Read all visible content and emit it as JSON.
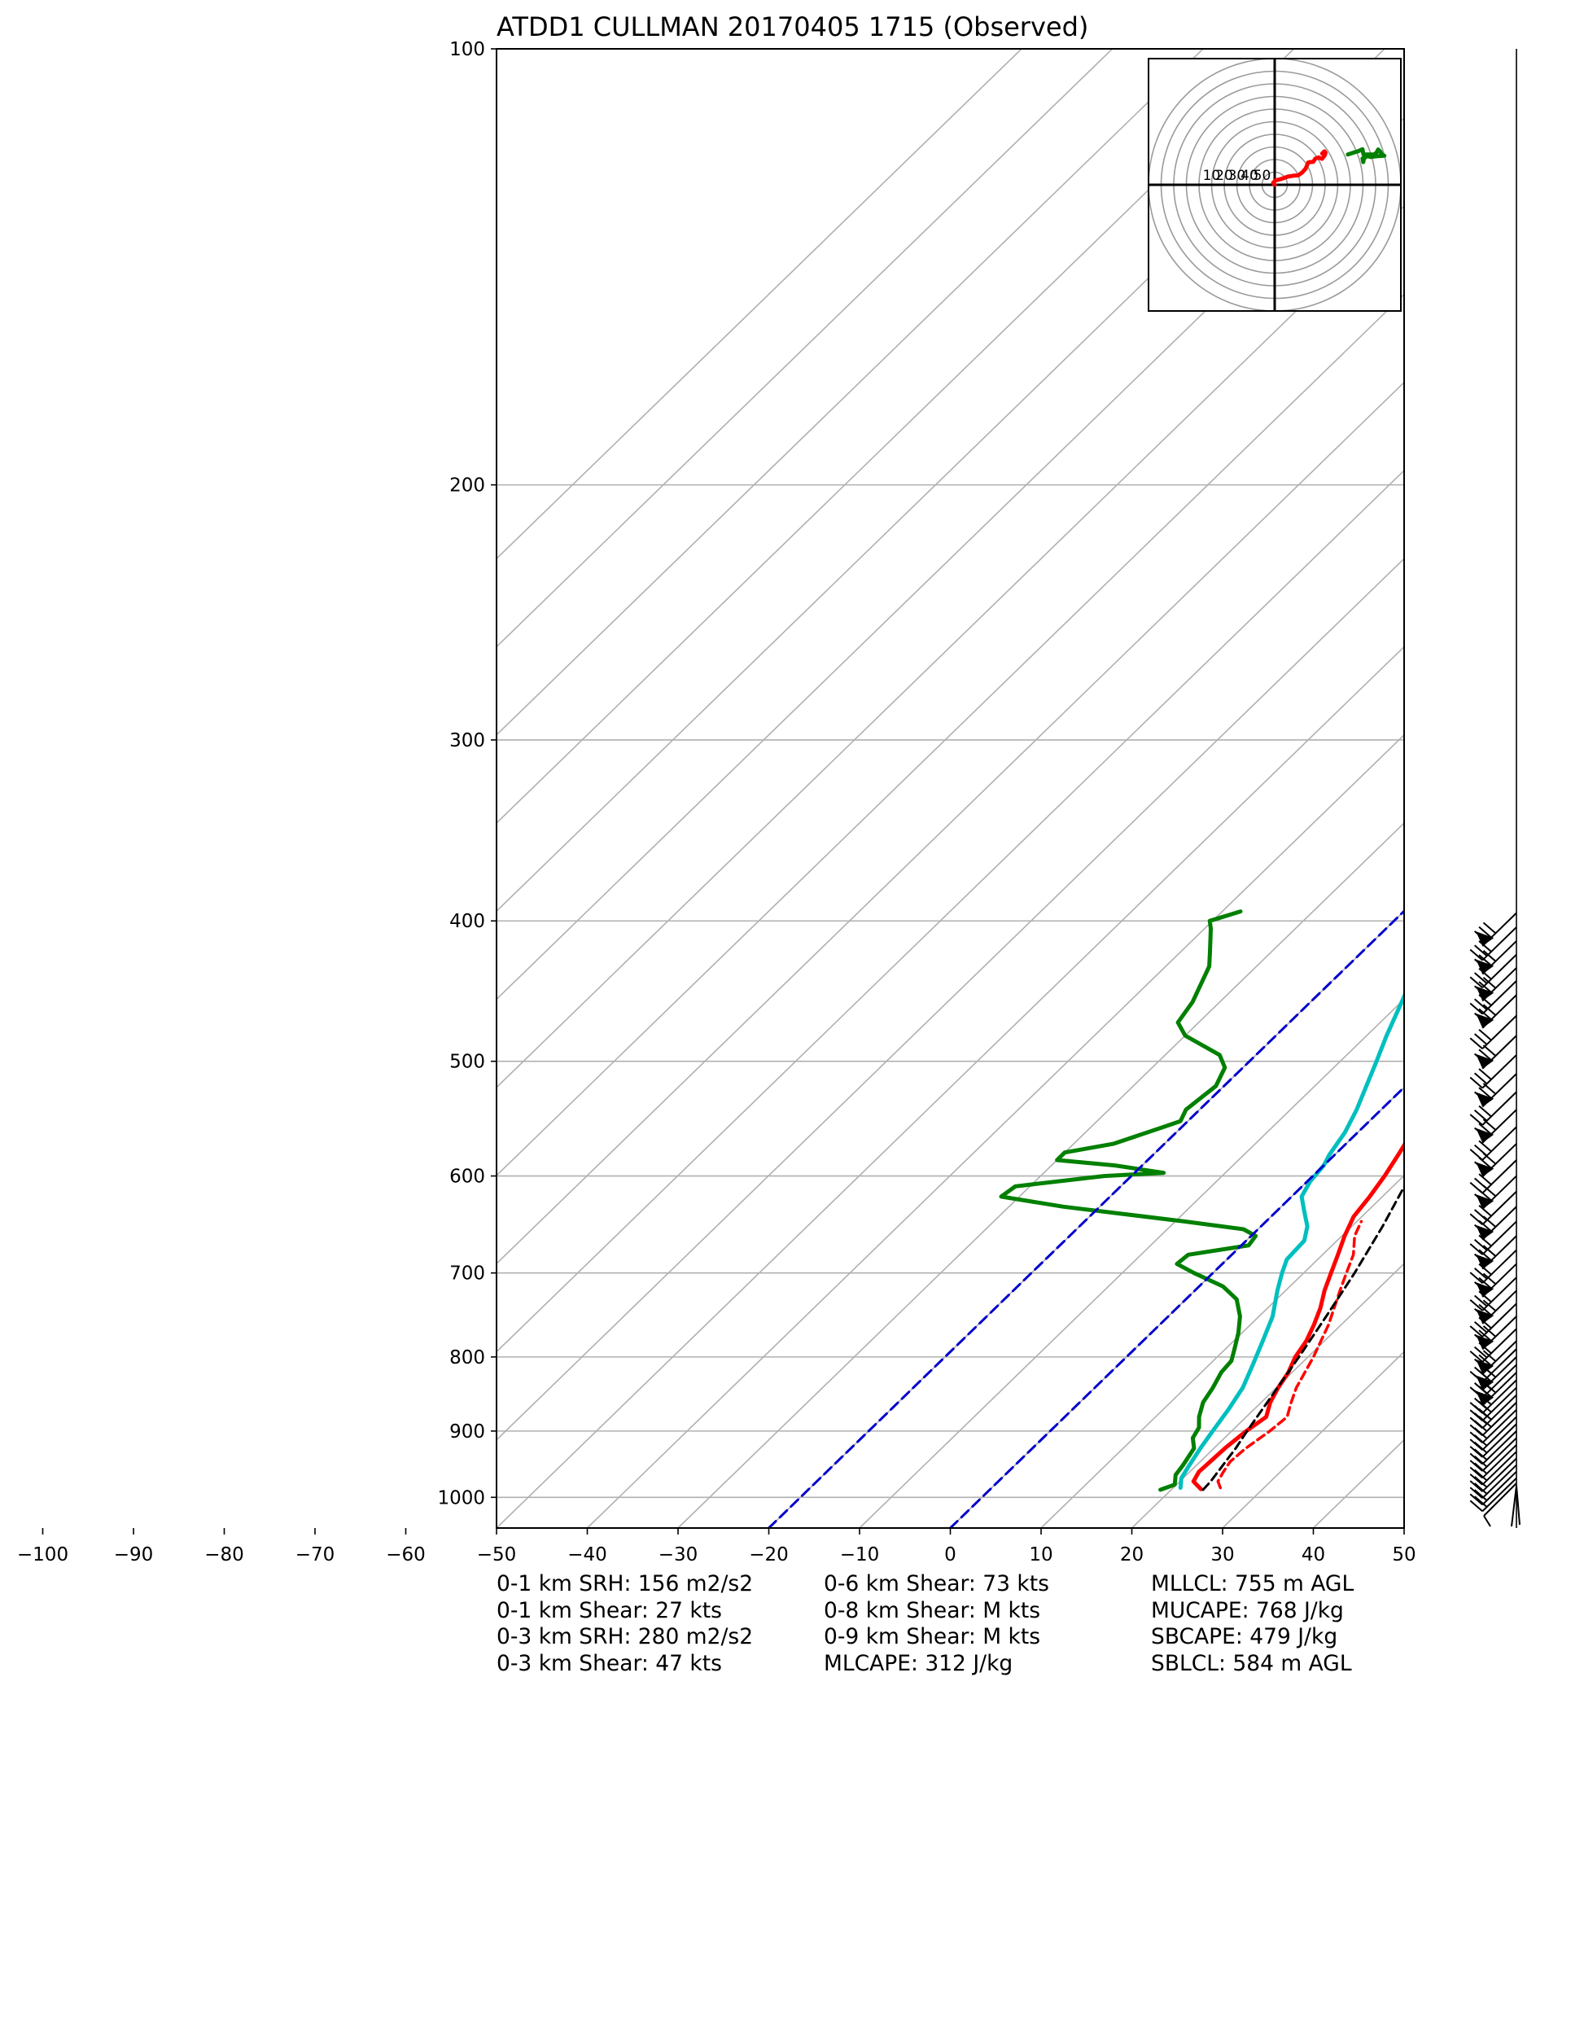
{
  "title": "ATDD1 CULLMAN 20170405 1715   (Observed)",
  "chart_data": {
    "type": "skew-t",
    "title": "ATDD1 CULLMAN 20170405 1715   (Observed)",
    "xlim": [
      -50,
      50
    ],
    "pressure_range_hpa": [
      1050,
      100
    ],
    "x_tick_labels": [
      "−100",
      "−90",
      "−80",
      "−70",
      "−60",
      "−50",
      "−40",
      "−30",
      "−20",
      "−10",
      "0",
      "10",
      "20",
      "30",
      "40",
      "50"
    ],
    "x_ticks": [
      -100,
      -90,
      -80,
      -70,
      -60,
      -50,
      -40,
      -30,
      -20,
      -10,
      0,
      10,
      20,
      30,
      40,
      50
    ],
    "y_tick_labels": [
      "100",
      "200",
      "300",
      "400",
      "500",
      "600",
      "700",
      "800",
      "900",
      "1000"
    ],
    "y_ticks": [
      100,
      200,
      300,
      400,
      500,
      600,
      700,
      800,
      900,
      1000
    ],
    "grid": true,
    "y_scale": "log",
    "isotherm_spacing_c": 10,
    "series": [
      {
        "color": "#ff0000",
        "style": "solid",
        "points": [
          [
            987,
            23.2
          ],
          [
            975,
            21.5
          ],
          [
            960,
            21.0
          ],
          [
            945,
            21.1
          ],
          [
            925,
            21.2
          ],
          [
            900,
            21.6
          ],
          [
            880,
            22.2
          ],
          [
            860,
            21.0
          ],
          [
            840,
            20.2
          ],
          [
            820,
            19.6
          ],
          [
            800,
            18.6
          ],
          [
            780,
            18.0
          ],
          [
            760,
            17.0
          ],
          [
            740,
            15.8
          ],
          [
            720,
            14.3
          ],
          [
            700,
            13.0
          ],
          [
            680,
            11.7
          ],
          [
            660,
            10.3
          ],
          [
            640,
            9.1
          ],
          [
            620,
            8.6
          ],
          [
            600,
            7.9
          ],
          [
            580,
            7.0
          ],
          [
            570,
            6.5
          ],
          [
            550,
            5.1
          ],
          [
            530,
            3.3
          ],
          [
            500,
            0.8
          ],
          [
            480,
            -0.9
          ],
          [
            450,
            -3.2
          ],
          [
            420,
            -6.3
          ],
          [
            400,
            -8.2
          ],
          [
            395,
            -8.6
          ]
        ]
      },
      {
        "color": "#00bfbf",
        "style": "solid",
        "points": [
          [
            985,
            20.8
          ],
          [
            970,
            19.8
          ],
          [
            950,
            19.2
          ],
          [
            925,
            18.5
          ],
          [
            900,
            17.9
          ],
          [
            870,
            17.2
          ],
          [
            840,
            16.3
          ],
          [
            810,
            14.8
          ],
          [
            780,
            13.2
          ],
          [
            750,
            11.5
          ],
          [
            720,
            9.1
          ],
          [
            700,
            7.6
          ],
          [
            685,
            6.6
          ],
          [
            665,
            6.4
          ],
          [
            650,
            5.1
          ],
          [
            635,
            3.1
          ],
          [
            620,
            1.1
          ],
          [
            605,
            0.3
          ],
          [
            590,
            0.0
          ],
          [
            580,
            -0.6
          ],
          [
            560,
            -1.4
          ],
          [
            540,
            -2.7
          ],
          [
            500,
            -6.0
          ],
          [
            480,
            -7.8
          ],
          [
            450,
            -10.4
          ],
          [
            420,
            -13.2
          ],
          [
            400,
            -15.1
          ],
          [
            395,
            -15.6
          ]
        ]
      },
      {
        "color": "#008000",
        "style": "solid",
        "points": [
          [
            988,
            18.8
          ],
          [
            980,
            19.8
          ],
          [
            965,
            18.8
          ],
          [
            950,
            18.5
          ],
          [
            925,
            17.8
          ],
          [
            910,
            16.5
          ],
          [
            895,
            16.0
          ],
          [
            880,
            14.8
          ],
          [
            860,
            13.6
          ],
          [
            840,
            13.0
          ],
          [
            820,
            12.2
          ],
          [
            805,
            12.0
          ],
          [
            790,
            11.0
          ],
          [
            770,
            9.6
          ],
          [
            750,
            7.9
          ],
          [
            730,
            5.6
          ],
          [
            715,
            2.6
          ],
          [
            700,
            -2.1
          ],
          [
            690,
            -5.0
          ],
          [
            680,
            -4.8
          ],
          [
            670,
            0.8
          ],
          [
            660,
            0.5
          ],
          [
            653,
            -1.6
          ],
          [
            645,
            -9.0
          ],
          [
            630,
            -24.0
          ],
          [
            620,
            -32.0
          ],
          [
            610,
            -31.6
          ],
          [
            600,
            -23.0
          ],
          [
            597,
            -16.8
          ],
          [
            590,
            -23.0
          ],
          [
            585,
            -30.0
          ],
          [
            578,
            -30.0
          ],
          [
            570,
            -25.6
          ],
          [
            555,
            -22.0
          ],
          [
            550,
            -20.8
          ],
          [
            540,
            -21.5
          ],
          [
            520,
            -20.9
          ],
          [
            505,
            -22.0
          ],
          [
            495,
            -24.0
          ],
          [
            480,
            -30.0
          ],
          [
            470,
            -32.3
          ],
          [
            455,
            -33.0
          ],
          [
            430,
            -35.2
          ],
          [
            420,
            -36.8
          ],
          [
            405,
            -39.3
          ],
          [
            400,
            -40.3
          ],
          [
            394,
            -38.0
          ]
        ]
      },
      {
        "color": "#ff0000",
        "style": "dashed",
        "points": [
          [
            985,
            25.2
          ],
          [
            975,
            24.2
          ],
          [
            960,
            23.7
          ],
          [
            945,
            23.3
          ],
          [
            925,
            23.5
          ],
          [
            900,
            24.2
          ],
          [
            880,
            24.5
          ],
          [
            860,
            23.3
          ],
          [
            840,
            22.2
          ],
          [
            800,
            20.6
          ],
          [
            760,
            18.6
          ],
          [
            720,
            16.0
          ],
          [
            700,
            14.7
          ],
          [
            680,
            13.4
          ],
          [
            660,
            11.4
          ],
          [
            645,
            10.5
          ]
        ]
      },
      {
        "color": "#000000",
        "style": "dashed",
        "points": [
          [
            988,
            23.5
          ],
          [
            975,
            23.4
          ],
          [
            960,
            23.1
          ],
          [
            940,
            22.7
          ],
          [
            925,
            22.4
          ],
          [
            900,
            21.7
          ],
          [
            850,
            20.4
          ],
          [
            800,
            19.0
          ],
          [
            750,
            17.4
          ],
          [
            700,
            15.6
          ],
          [
            650,
            13.4
          ],
          [
            600,
            10.7
          ],
          [
            550,
            7.5
          ],
          [
            500,
            3.3
          ],
          [
            460,
            -1.4
          ],
          [
            430,
            -5.6
          ],
          [
            410,
            -8.6
          ],
          [
            398,
            -11.0
          ]
        ]
      },
      {
        "color": "#0000cc",
        "style": "dashed",
        "points": [
          [
            1050,
            0
          ],
          [
            100,
            0
          ]
        ]
      },
      {
        "color": "#0000cc",
        "style": "dashed",
        "points": [
          [
            1050,
            -20
          ],
          [
            100,
            -20
          ]
        ]
      }
    ],
    "hodograph": {
      "ring_labels": [
        "50",
        "40",
        "30",
        "20",
        "10"
      ],
      "ring_values": [
        10,
        20,
        30,
        40,
        50
      ],
      "red_trace": [
        [
          0,
          0
        ],
        [
          -1.2,
          1.5
        ],
        [
          0.5,
          3.4
        ],
        [
          5.0,
          4.6
        ],
        [
          10.6,
          6.5
        ],
        [
          15.0,
          7.2
        ],
        [
          18.4,
          7.4
        ],
        [
          21.7,
          9.6
        ],
        [
          24.5,
          12.8
        ],
        [
          25.6,
          15.4
        ],
        [
          26.5,
          17.6
        ],
        [
          28.0,
          18.0
        ],
        [
          30.5,
          18.1
        ],
        [
          32.2,
          20.8
        ],
        [
          34.8,
          21.7
        ],
        [
          37.5,
          20.6
        ],
        [
          38.6,
          21.9
        ],
        [
          39.8,
          23.7
        ],
        [
          40.3,
          25.4
        ],
        [
          39.4,
          26.5
        ],
        [
          37.6,
          24.8
        ]
      ],
      "green_trace": [
        [
          58.0,
          24.0
        ],
        [
          67.0,
          27.0
        ],
        [
          69.6,
          28.2
        ],
        [
          70.4,
          24.0
        ],
        [
          79.0,
          24.0
        ],
        [
          81.0,
          25.9
        ],
        [
          82.0,
          28.0
        ],
        [
          83.5,
          26.5
        ],
        [
          85.0,
          24.0
        ],
        [
          87.0,
          23.0
        ],
        [
          80.0,
          22.6
        ],
        [
          76.0,
          22.0
        ],
        [
          73.4,
          22.9
        ],
        [
          70.8,
          20.9
        ],
        [
          70.2,
          18.0
        ],
        [
          69.6,
          20.9
        ]
      ]
    }
  },
  "stats": {
    "col1": [
      "0-1 km SRH: 156 m2/s2",
      "0-1 km Shear: 27 kts",
      "0-3 km SRH: 280 m2/s2",
      "0-3 km Shear: 47 kts"
    ],
    "col2": [
      "0-6 km Shear: 73 kts",
      "0-8 km Shear: M kts",
      "0-9 km Shear: M kts",
      "MLCAPE: 312 J/kg"
    ],
    "col3": [
      "MLLCL: 755 m AGL",
      "MUCAPE: 768 J/kg",
      "SBCAPE: 479 J/kg",
      "SBLCL: 584 m AGL"
    ]
  }
}
